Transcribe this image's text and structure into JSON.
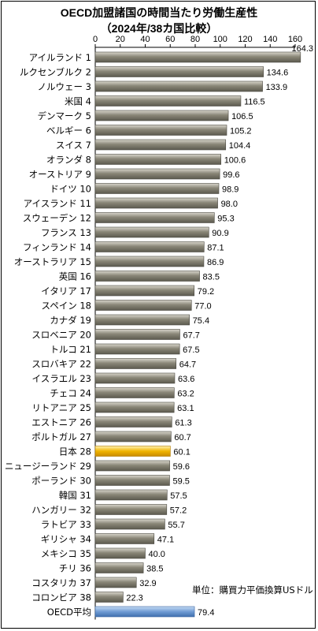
{
  "chart_data": {
    "type": "bar",
    "orientation": "horizontal",
    "title": "OECD加盟諸国の時間当たり労働生産性",
    "subtitle": "（2024年/38カ国比較）",
    "unit_note": "単位：購買力平価換算USドル",
    "xlim": [
      0,
      160
    ],
    "xticks": [
      "0",
      "20",
      "40",
      "60",
      "80",
      "100",
      "120",
      "140",
      "160"
    ],
    "grid": false,
    "colors": {
      "default_bar": "#8a8778",
      "japan_bar": "#f0b400",
      "oecd_bar": "#6f9bd4"
    },
    "categories": [
      "アイルランド 1",
      "ルクセンブルク 2",
      "ノルウェー 3",
      "米国 4",
      "デンマーク 5",
      "ベルギー 6",
      "スイス 7",
      "オランダ 8",
      "オーストリア 9",
      "ドイツ 10",
      "アイスランド 11",
      "スウェーデン 12",
      "フランス 13",
      "フィンランド 14",
      "オーストラリア 15",
      "英国 16",
      "イタリア 17",
      "スペイン 18",
      "カナダ 19",
      "スロベニア 20",
      "トルコ 21",
      "スロバキア 22",
      "イスラエル 23",
      "チェコ 24",
      "リトアニア 25",
      "エストニア 26",
      "ポルトガル 27",
      "日本 28",
      "ニュージーランド 29",
      "ポーランド 30",
      "韓国 31",
      "ハンガリー 32",
      "ラトビア 33",
      "ギリシャ 34",
      "メキシコ 35",
      "チリ 36",
      "コスタリカ 37",
      "コロンビア 38",
      "OECD平均"
    ],
    "values": [
      164.3,
      134.6,
      133.9,
      116.5,
      106.5,
      105.2,
      104.4,
      100.6,
      99.6,
      98.9,
      98.0,
      95.3,
      90.9,
      87.1,
      86.9,
      83.5,
      79.2,
      77.0,
      75.4,
      67.7,
      67.5,
      64.7,
      63.6,
      63.2,
      63.1,
      61.3,
      60.7,
      60.1,
      59.6,
      59.5,
      57.5,
      57.2,
      55.7,
      47.1,
      40.0,
      38.5,
      32.9,
      22.3,
      79.4
    ],
    "value_labels": [
      "164.3",
      "134.6",
      "133.9",
      "116.5",
      "106.5",
      "105.2",
      "104.4",
      "100.6",
      "99.6",
      "98.9",
      "98.0",
      "95.3",
      "90.9",
      "87.1",
      "86.9",
      "83.5",
      "79.2",
      "77.0",
      "75.4",
      "67.7",
      "67.5",
      "64.7",
      "63.6",
      "63.2",
      "63.1",
      "61.3",
      "60.7",
      "60.1",
      "59.6",
      "59.5",
      "57.5",
      "57.2",
      "55.7",
      "47.1",
      "40.0",
      "38.5",
      "32.9",
      "22.3",
      "79.4"
    ],
    "highlight": {
      "japan_index": 27,
      "oecd_index": 38
    }
  }
}
